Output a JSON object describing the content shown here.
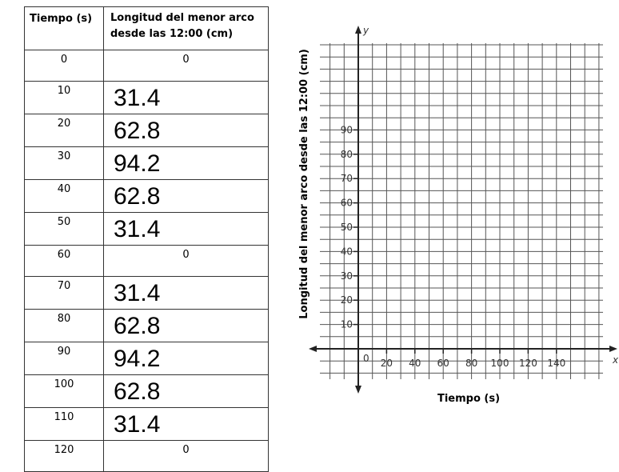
{
  "table": {
    "headers": [
      "Tiempo (s)",
      "Longitud del menor arco desde las 12:00 (cm)"
    ],
    "rows": [
      {
        "t": "0",
        "v": "0",
        "style": "small"
      },
      {
        "t": "10",
        "v": "31.4",
        "style": "big"
      },
      {
        "t": "20",
        "v": "62.8",
        "style": "big"
      },
      {
        "t": "30",
        "v": "94.2",
        "style": "big"
      },
      {
        "t": "40",
        "v": "62.8",
        "style": "big"
      },
      {
        "t": "50",
        "v": "31.4",
        "style": "big"
      },
      {
        "t": "60",
        "v": "0",
        "style": "small"
      },
      {
        "t": "70",
        "v": "31.4",
        "style": "big"
      },
      {
        "t": "80",
        "v": "62.8",
        "style": "big"
      },
      {
        "t": "90",
        "v": "94.2",
        "style": "big"
      },
      {
        "t": "100",
        "v": "62.8",
        "style": "big"
      },
      {
        "t": "110",
        "v": "31.4",
        "style": "big"
      },
      {
        "t": "120",
        "v": "0",
        "style": "small"
      }
    ]
  },
  "graph": {
    "y_axis_label": "Longitud del menor arco desde las 12:00 (cm)",
    "x_axis_label": "Tiempo (s)",
    "y_letter": "y",
    "x_letter": "x",
    "origin_label": "0",
    "x_ticks": [
      "20",
      "40",
      "60",
      "80",
      "100",
      "120",
      "140"
    ],
    "y_ticks": [
      "10",
      "20",
      "30",
      "40",
      "50",
      "60",
      "70",
      "80",
      "90"
    ]
  }
}
